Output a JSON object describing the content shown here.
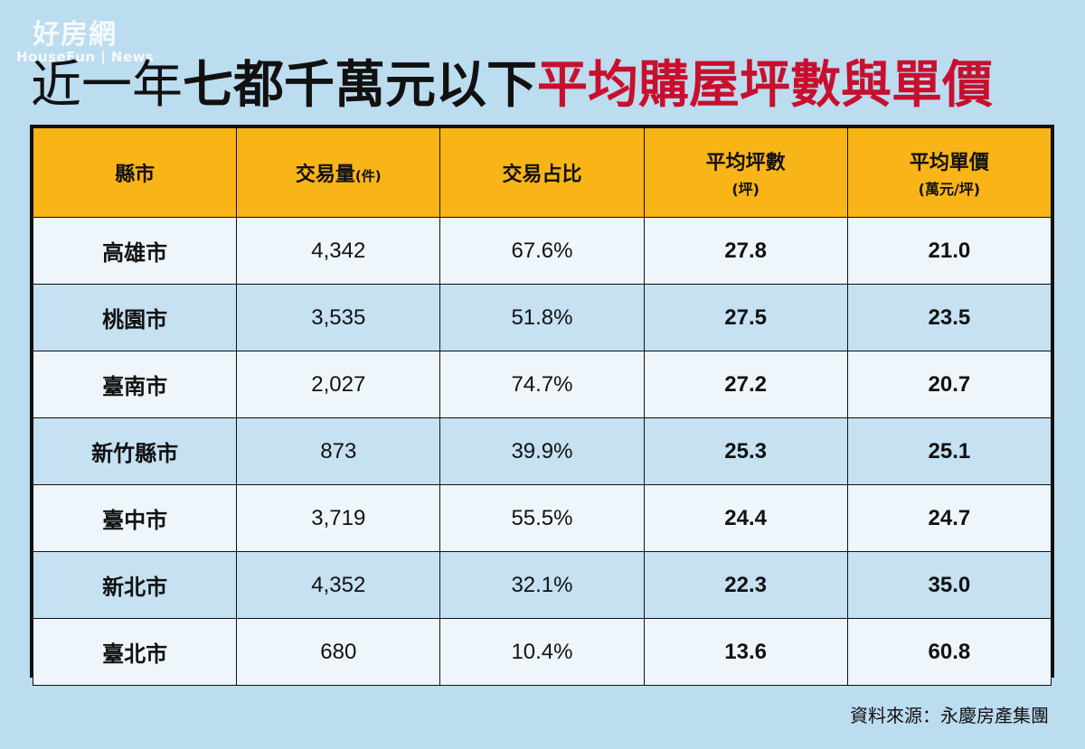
{
  "watermark": {
    "cn": "好房網",
    "en": "HouseFun | News"
  },
  "title": {
    "part1": "近一年",
    "part2": "七都千萬元以下",
    "part3": "平均購屋坪數與單價"
  },
  "table": {
    "headers": [
      {
        "label": "縣市",
        "unit": ""
      },
      {
        "label": "交易量",
        "unit": "(件)"
      },
      {
        "label": "交易占比",
        "unit": ""
      },
      {
        "label": "平均坪數",
        "unit": "(坪)"
      },
      {
        "label": "平均單價",
        "unit": "(萬元/坪)"
      }
    ],
    "rows": [
      {
        "city": "高雄市",
        "volume": "4,342",
        "share": "67.6%",
        "avg_area": "27.8",
        "avg_price": "21.0"
      },
      {
        "city": "桃園市",
        "volume": "3,535",
        "share": "51.8%",
        "avg_area": "27.5",
        "avg_price": "23.5"
      },
      {
        "city": "臺南市",
        "volume": "2,027",
        "share": "74.7%",
        "avg_area": "27.2",
        "avg_price": "20.7"
      },
      {
        "city": "新竹縣市",
        "volume": "873",
        "share": "39.9%",
        "avg_area": "25.3",
        "avg_price": "25.1"
      },
      {
        "city": "臺中市",
        "volume": "3,719",
        "share": "55.5%",
        "avg_area": "24.4",
        "avg_price": "24.7"
      },
      {
        "city": "新北市",
        "volume": "4,352",
        "share": "32.1%",
        "avg_area": "22.3",
        "avg_price": "35.0"
      },
      {
        "city": "臺北市",
        "volume": "680",
        "share": "10.4%",
        "avg_area": "13.6",
        "avg_price": "60.8"
      }
    ]
  },
  "source": "資料來源：永慶房產集團",
  "colors": {
    "background": "#bcdcef",
    "header": "#f9b418",
    "title_red": "#c8102e",
    "row_light": "#eef6fb",
    "row_blue": "#c5e1f2"
  }
}
